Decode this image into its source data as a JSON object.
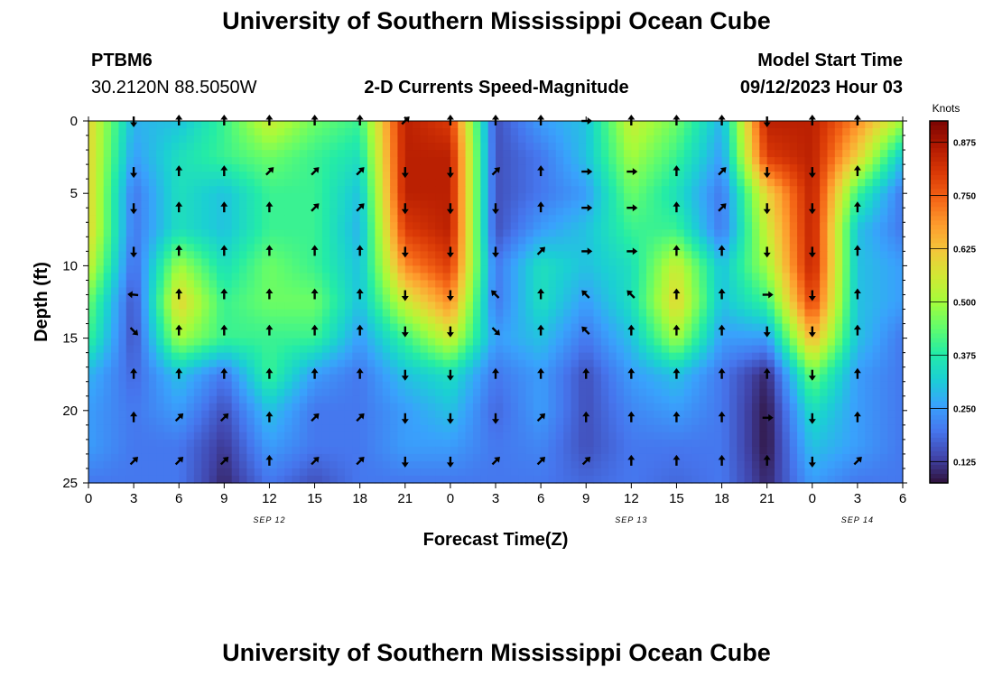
{
  "header": {
    "title": "University of Southern Mississippi Ocean Cube",
    "station": "PTBM6",
    "coordinates": "30.2120N  88.5050W",
    "plot_title": "2-D Currents Speed-Magnitude",
    "model_start_label": "Model Start Time",
    "model_start_value": "09/12/2023 Hour 03"
  },
  "footer": {
    "title": "University of Southern Mississippi Ocean Cube"
  },
  "colors": {
    "scale": [
      "#30123b",
      "#4145ab",
      "#4675ed",
      "#39a2fc",
      "#1bcfd4",
      "#24eca6",
      "#61fc6c",
      "#a4fc3b",
      "#d1e834",
      "#f3c63a",
      "#fe9b2d",
      "#f36315",
      "#d93806",
      "#b11901",
      "#7a0403"
    ]
  },
  "chart_data": {
    "type": "heatmap",
    "title": "2-D Currents Speed-Magnitude",
    "xlabel": "Forecast Time(Z)",
    "ylabel": "Depth (ft)",
    "x_ticks": [
      "0",
      "3",
      "6",
      "9",
      "12",
      "15",
      "18",
      "21",
      "0",
      "3",
      "6",
      "9",
      "12",
      "15",
      "18",
      "21",
      "0",
      "3",
      "6"
    ],
    "x_hours": [
      0,
      3,
      6,
      9,
      12,
      15,
      18,
      21,
      24,
      27,
      30,
      33,
      36,
      39,
      42,
      45,
      48,
      51,
      54
    ],
    "xlim": [
      0,
      54
    ],
    "y_ticks": [
      "0",
      "5",
      "10",
      "15",
      "20",
      "25"
    ],
    "y_values": [
      0,
      5,
      10,
      15,
      20,
      25
    ],
    "ylim": [
      0,
      25
    ],
    "date_labels": [
      {
        "text": "SEP 12",
        "hour": 12
      },
      {
        "text": "SEP 13",
        "hour": 36
      },
      {
        "text": "SEP 14",
        "hour": 51
      }
    ],
    "colorbar": {
      "label": "Knots",
      "ticks": [
        "0.125",
        "0.250",
        "0.375",
        "0.500",
        "0.625",
        "0.750",
        "0.875"
      ],
      "tick_values": [
        0.125,
        0.25,
        0.375,
        0.5,
        0.625,
        0.75,
        0.875
      ],
      "range": [
        0.075,
        0.925
      ]
    },
    "speed_grid": {
      "hours": [
        0,
        3,
        6,
        9,
        12,
        15,
        18,
        21,
        24,
        27,
        30,
        33,
        36,
        39,
        42,
        45,
        48,
        51,
        54
      ],
      "depths": [
        0,
        2.5,
        5,
        7.5,
        10,
        12.5,
        15,
        17.5,
        20,
        22.5,
        25
      ],
      "values": [
        [
          0.6,
          0.28,
          0.3,
          0.4,
          0.55,
          0.45,
          0.4,
          0.85,
          0.8,
          0.15,
          0.25,
          0.3,
          0.55,
          0.45,
          0.28,
          0.85,
          0.85,
          0.7,
          0.5
        ],
        [
          0.6,
          0.25,
          0.35,
          0.4,
          0.45,
          0.4,
          0.35,
          0.85,
          0.85,
          0.15,
          0.2,
          0.3,
          0.5,
          0.4,
          0.25,
          0.8,
          0.85,
          0.6,
          0.3
        ],
        [
          0.6,
          0.2,
          0.35,
          0.3,
          0.4,
          0.4,
          0.3,
          0.85,
          0.85,
          0.15,
          0.2,
          0.25,
          0.45,
          0.35,
          0.2,
          0.6,
          0.85,
          0.4,
          0.2
        ],
        [
          0.6,
          0.2,
          0.35,
          0.3,
          0.4,
          0.4,
          0.28,
          0.8,
          0.85,
          0.15,
          0.25,
          0.3,
          0.4,
          0.4,
          0.2,
          0.55,
          0.85,
          0.3,
          0.2
        ],
        [
          0.55,
          0.18,
          0.5,
          0.35,
          0.45,
          0.4,
          0.3,
          0.7,
          0.8,
          0.2,
          0.35,
          0.3,
          0.35,
          0.55,
          0.3,
          0.5,
          0.85,
          0.3,
          0.25
        ],
        [
          0.45,
          0.15,
          0.6,
          0.4,
          0.45,
          0.45,
          0.3,
          0.55,
          0.7,
          0.2,
          0.35,
          0.25,
          0.35,
          0.6,
          0.3,
          0.4,
          0.8,
          0.3,
          0.25
        ],
        [
          0.4,
          0.15,
          0.5,
          0.4,
          0.4,
          0.4,
          0.25,
          0.4,
          0.55,
          0.25,
          0.3,
          0.2,
          0.3,
          0.5,
          0.25,
          0.25,
          0.65,
          0.3,
          0.2
        ],
        [
          0.28,
          0.18,
          0.3,
          0.2,
          0.4,
          0.25,
          0.2,
          0.3,
          0.35,
          0.2,
          0.25,
          0.15,
          0.25,
          0.3,
          0.2,
          0.1,
          0.45,
          0.25,
          0.2
        ],
        [
          0.25,
          0.2,
          0.25,
          0.15,
          0.3,
          0.2,
          0.2,
          0.25,
          0.3,
          0.18,
          0.25,
          0.15,
          0.22,
          0.25,
          0.2,
          0.08,
          0.35,
          0.25,
          0.2
        ],
        [
          0.25,
          0.2,
          0.2,
          0.12,
          0.25,
          0.2,
          0.2,
          0.25,
          0.25,
          0.2,
          0.22,
          0.15,
          0.2,
          0.2,
          0.2,
          0.08,
          0.3,
          0.25,
          0.2
        ],
        [
          0.2,
          0.2,
          0.2,
          0.1,
          0.2,
          0.15,
          0.2,
          0.2,
          0.2,
          0.2,
          0.2,
          0.18,
          0.2,
          0.18,
          0.2,
          0.1,
          0.25,
          0.2,
          0.2
        ]
      ]
    },
    "vectors": {
      "hours": [
        3,
        6,
        9,
        12,
        15,
        18,
        21,
        24,
        27,
        30,
        33,
        36,
        39,
        42,
        45,
        48,
        51
      ],
      "depths": [
        0,
        3.5,
        6,
        9,
        12,
        14.5,
        17.5,
        20.5,
        23.5
      ],
      "directions_deg": [
        [
          180,
          0,
          0,
          0,
          0,
          0,
          45,
          0,
          0,
          0,
          90,
          0,
          0,
          0,
          180,
          0,
          0
        ],
        [
          180,
          0,
          0,
          45,
          45,
          45,
          180,
          180,
          45,
          0,
          90,
          90,
          0,
          45,
          180,
          180,
          0
        ],
        [
          180,
          0,
          0,
          0,
          45,
          45,
          180,
          180,
          180,
          0,
          90,
          90,
          0,
          45,
          180,
          180,
          0
        ],
        [
          180,
          0,
          0,
          0,
          0,
          0,
          180,
          180,
          180,
          45,
          90,
          90,
          0,
          0,
          180,
          180,
          0
        ],
        [
          275,
          0,
          0,
          0,
          0,
          0,
          180,
          180,
          315,
          0,
          315,
          315,
          0,
          0,
          90,
          180,
          0
        ],
        [
          135,
          0,
          0,
          0,
          0,
          0,
          180,
          180,
          135,
          0,
          315,
          0,
          0,
          0,
          180,
          180,
          0
        ],
        [
          0,
          0,
          0,
          0,
          0,
          0,
          180,
          180,
          0,
          0,
          0,
          0,
          0,
          0,
          0,
          180,
          0
        ],
        [
          0,
          45,
          45,
          0,
          45,
          45,
          180,
          180,
          180,
          45,
          0,
          0,
          0,
          0,
          90,
          180,
          0
        ],
        [
          45,
          45,
          45,
          0,
          45,
          45,
          180,
          180,
          45,
          45,
          45,
          0,
          0,
          0,
          0,
          180,
          45
        ]
      ]
    }
  }
}
